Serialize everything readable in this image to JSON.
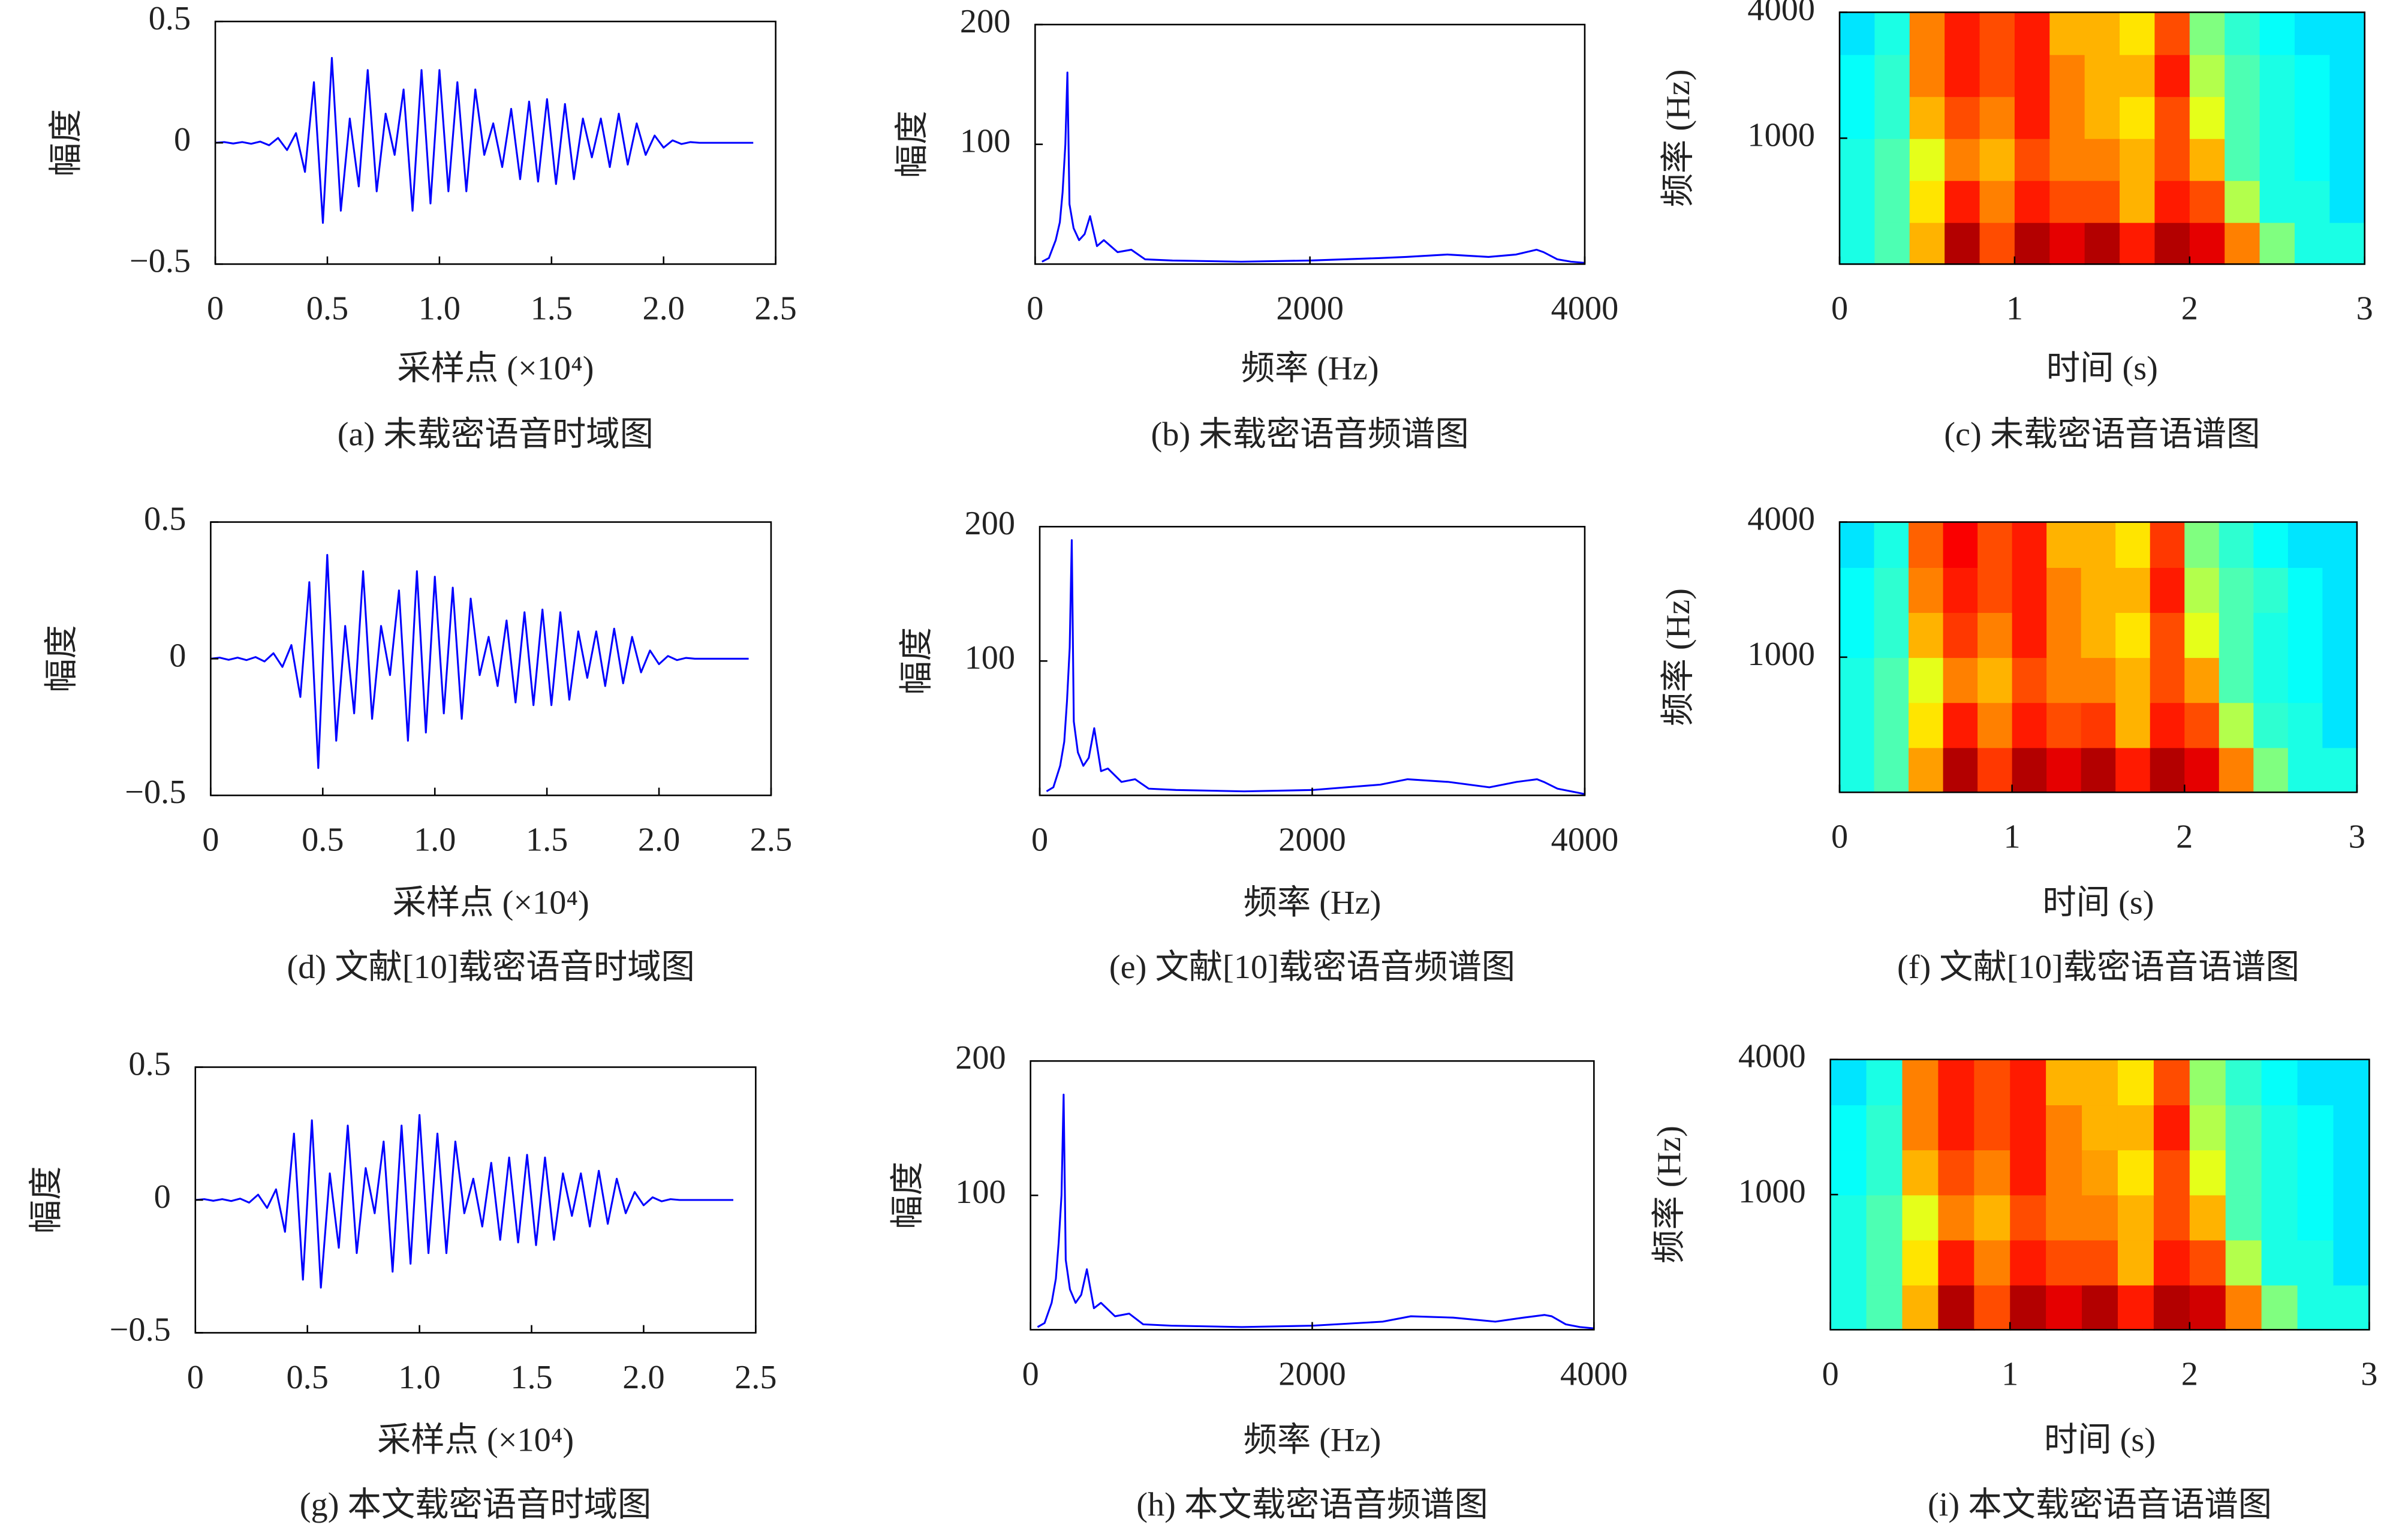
{
  "chart_data": [
    {
      "type": "line",
      "caption": "(a) 未载密语音时域图",
      "xlabel": "采样点 (×10⁴)",
      "ylabel": "幅度",
      "color": "#0000ff",
      "xlim": [
        0,
        2.5
      ],
      "ylim": [
        -0.5,
        0.5
      ],
      "xticks": [
        0,
        0.5,
        {
          "value": 1,
          "label": "1.0"
        },
        1.5,
        {
          "value": 2,
          "label": "2.0"
        },
        2.5
      ],
      "yticks": [
        {
          "value": -0.5,
          "label": "−0.5"
        },
        0,
        0.5
      ],
      "x": [
        0,
        0.04,
        0.08,
        0.12,
        0.16,
        0.2,
        0.24,
        0.28,
        0.32,
        0.36,
        0.4,
        0.44,
        0.48,
        0.52,
        0.56,
        0.6,
        0.64,
        0.68,
        0.72,
        0.76,
        0.8,
        0.84,
        0.88,
        0.92,
        0.96,
        1.0,
        1.04,
        1.08,
        1.12,
        1.16,
        1.2,
        1.24,
        1.28,
        1.32,
        1.36,
        1.4,
        1.44,
        1.48,
        1.52,
        1.56,
        1.6,
        1.64,
        1.68,
        1.72,
        1.76,
        1.8,
        1.84,
        1.88,
        1.92,
        1.96,
        2.0,
        2.04,
        2.08,
        2.12,
        2.16,
        2.2,
        2.24,
        2.28,
        2.32,
        2.36,
        2.4
      ],
      "values": [
        0,
        0.003,
        -0.003,
        0.003,
        -0.004,
        0.005,
        -0.01,
        0.02,
        -0.03,
        0.04,
        -0.12,
        0.25,
        -0.33,
        0.35,
        -0.28,
        0.1,
        -0.18,
        0.3,
        -0.2,
        0.12,
        -0.05,
        0.22,
        -0.28,
        0.3,
        -0.25,
        0.3,
        -0.2,
        0.25,
        -0.2,
        0.22,
        -0.05,
        0.08,
        -0.1,
        0.14,
        -0.15,
        0.17,
        -0.16,
        0.18,
        -0.17,
        0.16,
        -0.15,
        0.1,
        -0.06,
        0.1,
        -0.1,
        0.12,
        -0.09,
        0.08,
        -0.05,
        0.03,
        -0.02,
        0.01,
        -0.005,
        0.003,
        0,
        0,
        0,
        0,
        0,
        0,
        0
      ]
    },
    {
      "type": "line",
      "caption": "(b) 未载密语音频谱图",
      "xlabel": "频率 (Hz)",
      "ylabel": "幅度",
      "color": "#0000ff",
      "xlim": [
        0,
        4000
      ],
      "ylim": [
        0,
        200
      ],
      "xticks": [
        0,
        2000,
        4000
      ],
      "yticks": [
        100,
        200
      ],
      "x": [
        50,
        100,
        150,
        180,
        200,
        220,
        235,
        250,
        280,
        320,
        360,
        400,
        450,
        500,
        600,
        700,
        800,
        1000,
        1500,
        2000,
        2500,
        2700,
        3000,
        3300,
        3500,
        3650,
        3700,
        3800,
        3900,
        4000
      ],
      "values": [
        2,
        5,
        20,
        35,
        60,
        100,
        160,
        50,
        30,
        20,
        25,
        40,
        15,
        20,
        10,
        12,
        4,
        3,
        2,
        3,
        5,
        6,
        8,
        6,
        8,
        12,
        10,
        4,
        2,
        1
      ]
    },
    {
      "type": "heatmap",
      "caption": "(c) 未载密语音语谱图",
      "xlabel": "时间 (s)",
      "ylabel": "频率 (Hz)",
      "colormap": "jet",
      "xlim": [
        0,
        3
      ],
      "ylim": [
        250,
        4000
      ],
      "ylog": true,
      "xticks": [
        0,
        1,
        2,
        3
      ],
      "yticks": [
        1000,
        4000
      ],
      "z": [
        [
          0.4,
          0.45,
          0.7,
          0.95,
          0.8,
          0.95,
          0.9,
          0.95,
          0.85,
          0.95,
          0.9,
          0.75,
          0.5,
          0.4,
          0.4
        ],
        [
          0.4,
          0.45,
          0.65,
          0.85,
          0.75,
          0.85,
          0.8,
          0.8,
          0.7,
          0.85,
          0.8,
          0.55,
          0.4,
          0.4,
          0.35
        ],
        [
          0.4,
          0.45,
          0.6,
          0.75,
          0.7,
          0.8,
          0.75,
          0.75,
          0.7,
          0.8,
          0.7,
          0.45,
          0.4,
          0.38,
          0.35
        ],
        [
          0.38,
          0.42,
          0.7,
          0.8,
          0.75,
          0.85,
          0.75,
          0.7,
          0.65,
          0.8,
          0.6,
          0.45,
          0.4,
          0.38,
          0.35
        ],
        [
          0.38,
          0.42,
          0.75,
          0.85,
          0.8,
          0.85,
          0.75,
          0.7,
          0.7,
          0.85,
          0.55,
          0.45,
          0.4,
          0.38,
          0.35
        ],
        [
          0.35,
          0.4,
          0.75,
          0.85,
          0.8,
          0.85,
          0.7,
          0.7,
          0.65,
          0.8,
          0.5,
          0.42,
          0.38,
          0.35,
          0.35
        ]
      ]
    },
    {
      "type": "line",
      "caption": "(d) 文献[10]载密语音时域图",
      "xlabel": "采样点 (×10⁴)",
      "ylabel": "幅度",
      "color": "#0000ff",
      "xlim": [
        0,
        2.5
      ],
      "ylim": [
        -0.5,
        0.5
      ],
      "xticks": [
        0,
        0.5,
        {
          "value": 1,
          "label": "1.0"
        },
        1.5,
        {
          "value": 2,
          "label": "2.0"
        },
        2.5
      ],
      "yticks": [
        {
          "value": -0.5,
          "label": "−0.5"
        },
        0,
        0.5
      ],
      "x": [
        0,
        0.04,
        0.08,
        0.12,
        0.16,
        0.2,
        0.24,
        0.28,
        0.32,
        0.36,
        0.4,
        0.44,
        0.48,
        0.52,
        0.56,
        0.6,
        0.64,
        0.68,
        0.72,
        0.76,
        0.8,
        0.84,
        0.88,
        0.92,
        0.96,
        1.0,
        1.04,
        1.08,
        1.12,
        1.16,
        1.2,
        1.24,
        1.28,
        1.32,
        1.36,
        1.4,
        1.44,
        1.48,
        1.52,
        1.56,
        1.6,
        1.64,
        1.68,
        1.72,
        1.76,
        1.8,
        1.84,
        1.88,
        1.92,
        1.96,
        2.0,
        2.04,
        2.08,
        2.12,
        2.16,
        2.2,
        2.24,
        2.28,
        2.32,
        2.36,
        2.4
      ],
      "values": [
        0,
        0.004,
        -0.004,
        0.004,
        -0.005,
        0.006,
        -0.01,
        0.02,
        -0.03,
        0.05,
        -0.14,
        0.28,
        -0.4,
        0.38,
        -0.3,
        0.12,
        -0.2,
        0.32,
        -0.22,
        0.12,
        -0.06,
        0.25,
        -0.3,
        0.32,
        -0.27,
        0.3,
        -0.2,
        0.26,
        -0.22,
        0.22,
        -0.06,
        0.08,
        -0.1,
        0.14,
        -0.16,
        0.17,
        -0.17,
        0.18,
        -0.17,
        0.17,
        -0.15,
        0.1,
        -0.07,
        0.1,
        -0.1,
        0.11,
        -0.09,
        0.08,
        -0.05,
        0.03,
        -0.02,
        0.01,
        -0.005,
        0.003,
        0,
        0,
        0,
        0,
        0,
        0,
        0
      ]
    },
    {
      "type": "line",
      "caption": "(e) 文献[10]载密语音频谱图",
      "xlabel": "频率 (Hz)",
      "ylabel": "幅度",
      "color": "#0000ff",
      "xlim": [
        0,
        4000
      ],
      "ylim": [
        0,
        200
      ],
      "xticks": [
        0,
        2000,
        4000
      ],
      "yticks": [
        100,
        200
      ],
      "x": [
        50,
        100,
        150,
        180,
        200,
        220,
        235,
        250,
        280,
        320,
        360,
        400,
        450,
        500,
        600,
        700,
        800,
        1000,
        1500,
        2000,
        2500,
        2700,
        3000,
        3300,
        3500,
        3650,
        3700,
        3800,
        3900,
        4000
      ],
      "values": [
        3,
        6,
        22,
        40,
        70,
        110,
        190,
        55,
        32,
        22,
        28,
        50,
        18,
        20,
        10,
        12,
        5,
        4,
        3,
        4,
        8,
        12,
        10,
        6,
        10,
        12,
        10,
        5,
        3,
        1
      ]
    },
    {
      "type": "heatmap",
      "caption": "(f) 文献[10]载密语音语谱图",
      "xlabel": "时间 (s)",
      "ylabel": "频率 (Hz)",
      "colormap": "jet",
      "xlim": [
        0,
        3
      ],
      "ylim": [
        250,
        4000
      ],
      "ylog": true,
      "xticks": [
        0,
        1,
        2,
        3
      ],
      "yticks": [
        1000,
        4000
      ],
      "z": [
        [
          0.4,
          0.45,
          0.72,
          0.95,
          0.82,
          0.95,
          0.9,
          0.95,
          0.85,
          0.95,
          0.9,
          0.75,
          0.5,
          0.4,
          0.4
        ],
        [
          0.4,
          0.45,
          0.65,
          0.85,
          0.75,
          0.85,
          0.8,
          0.82,
          0.7,
          0.85,
          0.8,
          0.55,
          0.42,
          0.4,
          0.35
        ],
        [
          0.4,
          0.45,
          0.6,
          0.75,
          0.7,
          0.8,
          0.75,
          0.75,
          0.7,
          0.8,
          0.72,
          0.45,
          0.4,
          0.38,
          0.35
        ],
        [
          0.38,
          0.42,
          0.7,
          0.82,
          0.75,
          0.85,
          0.75,
          0.7,
          0.65,
          0.8,
          0.6,
          0.45,
          0.4,
          0.38,
          0.35
        ],
        [
          0.38,
          0.42,
          0.75,
          0.85,
          0.8,
          0.85,
          0.75,
          0.7,
          0.7,
          0.85,
          0.55,
          0.45,
          0.42,
          0.38,
          0.35
        ],
        [
          0.35,
          0.4,
          0.78,
          0.88,
          0.8,
          0.85,
          0.7,
          0.7,
          0.65,
          0.82,
          0.5,
          0.42,
          0.38,
          0.35,
          0.35
        ]
      ]
    },
    {
      "type": "line",
      "caption": "(g) 本文载密语音时域图",
      "xlabel": "采样点 (×10⁴)",
      "ylabel": "幅度",
      "color": "#0000ff",
      "xlim": [
        0,
        2.5
      ],
      "ylim": [
        -0.5,
        0.5
      ],
      "xticks": [
        0,
        0.5,
        {
          "value": 1,
          "label": "1.0"
        },
        1.5,
        {
          "value": 2,
          "label": "2.0"
        },
        2.5
      ],
      "yticks": [
        {
          "value": -0.5,
          "label": "−0.5"
        },
        0,
        0.5
      ],
      "x": [
        0,
        0.04,
        0.08,
        0.12,
        0.16,
        0.2,
        0.24,
        0.28,
        0.32,
        0.36,
        0.4,
        0.44,
        0.48,
        0.52,
        0.56,
        0.6,
        0.64,
        0.68,
        0.72,
        0.76,
        0.8,
        0.84,
        0.88,
        0.92,
        0.96,
        1.0,
        1.04,
        1.08,
        1.12,
        1.16,
        1.2,
        1.24,
        1.28,
        1.32,
        1.36,
        1.4,
        1.44,
        1.48,
        1.52,
        1.56,
        1.6,
        1.64,
        1.68,
        1.72,
        1.76,
        1.8,
        1.84,
        1.88,
        1.92,
        1.96,
        2.0,
        2.04,
        2.08,
        2.12,
        2.16,
        2.2,
        2.24,
        2.28,
        2.32,
        2.36,
        2.4
      ],
      "values": [
        0,
        0.003,
        -0.003,
        0.003,
        -0.004,
        0.005,
        -0.01,
        0.02,
        -0.03,
        0.04,
        -0.12,
        0.25,
        -0.3,
        0.3,
        -0.33,
        0.1,
        -0.18,
        0.28,
        -0.2,
        0.12,
        -0.05,
        0.22,
        -0.27,
        0.28,
        -0.24,
        0.32,
        -0.2,
        0.25,
        -0.2,
        0.22,
        -0.05,
        0.08,
        -0.1,
        0.14,
        -0.15,
        0.16,
        -0.16,
        0.17,
        -0.17,
        0.16,
        -0.15,
        0.1,
        -0.06,
        0.1,
        -0.1,
        0.11,
        -0.09,
        0.08,
        -0.05,
        0.03,
        -0.02,
        0.01,
        -0.005,
        0.003,
        0,
        0,
        0,
        0,
        0,
        0,
        0
      ]
    },
    {
      "type": "line",
      "caption": "(h) 本文载密语音频谱图",
      "xlabel": "频率 (Hz)",
      "ylabel": "幅度",
      "color": "#0000ff",
      "xlim": [
        0,
        4000
      ],
      "ylim": [
        0,
        200
      ],
      "xticks": [
        0,
        2000,
        4000
      ],
      "yticks": [
        100,
        200
      ],
      "x": [
        50,
        100,
        150,
        180,
        200,
        220,
        235,
        250,
        280,
        320,
        360,
        400,
        450,
        500,
        600,
        700,
        800,
        1000,
        1500,
        2000,
        2500,
        2700,
        3000,
        3300,
        3500,
        3650,
        3700,
        3800,
        3900,
        4000
      ],
      "values": [
        2,
        5,
        20,
        38,
        65,
        100,
        175,
        52,
        30,
        20,
        26,
        45,
        16,
        20,
        10,
        12,
        4,
        3,
        2,
        3,
        6,
        10,
        9,
        6,
        9,
        11,
        10,
        4,
        2,
        1
      ]
    },
    {
      "type": "heatmap",
      "caption": "(i) 本文载密语音语谱图",
      "xlabel": "时间 (s)",
      "ylabel": "频率 (Hz)",
      "colormap": "jet",
      "xlim": [
        0,
        3
      ],
      "ylim": [
        250,
        4000
      ],
      "ylog": true,
      "xticks": [
        0,
        1,
        2,
        3
      ],
      "yticks": [
        1000,
        4000
      ],
      "z": [
        [
          0.4,
          0.45,
          0.7,
          0.95,
          0.8,
          0.95,
          0.9,
          0.95,
          0.85,
          0.95,
          0.92,
          0.75,
          0.5,
          0.4,
          0.4
        ],
        [
          0.4,
          0.45,
          0.65,
          0.85,
          0.75,
          0.85,
          0.8,
          0.8,
          0.7,
          0.85,
          0.8,
          0.55,
          0.4,
          0.4,
          0.35
        ],
        [
          0.4,
          0.45,
          0.6,
          0.75,
          0.7,
          0.8,
          0.75,
          0.75,
          0.7,
          0.8,
          0.7,
          0.45,
          0.4,
          0.38,
          0.35
        ],
        [
          0.38,
          0.42,
          0.7,
          0.8,
          0.75,
          0.85,
          0.75,
          0.72,
          0.65,
          0.8,
          0.6,
          0.45,
          0.4,
          0.38,
          0.35
        ],
        [
          0.38,
          0.42,
          0.75,
          0.85,
          0.8,
          0.85,
          0.75,
          0.7,
          0.7,
          0.85,
          0.55,
          0.45,
          0.4,
          0.38,
          0.35
        ],
        [
          0.35,
          0.4,
          0.75,
          0.85,
          0.8,
          0.85,
          0.7,
          0.7,
          0.65,
          0.8,
          0.52,
          0.42,
          0.38,
          0.35,
          0.35
        ]
      ]
    }
  ]
}
